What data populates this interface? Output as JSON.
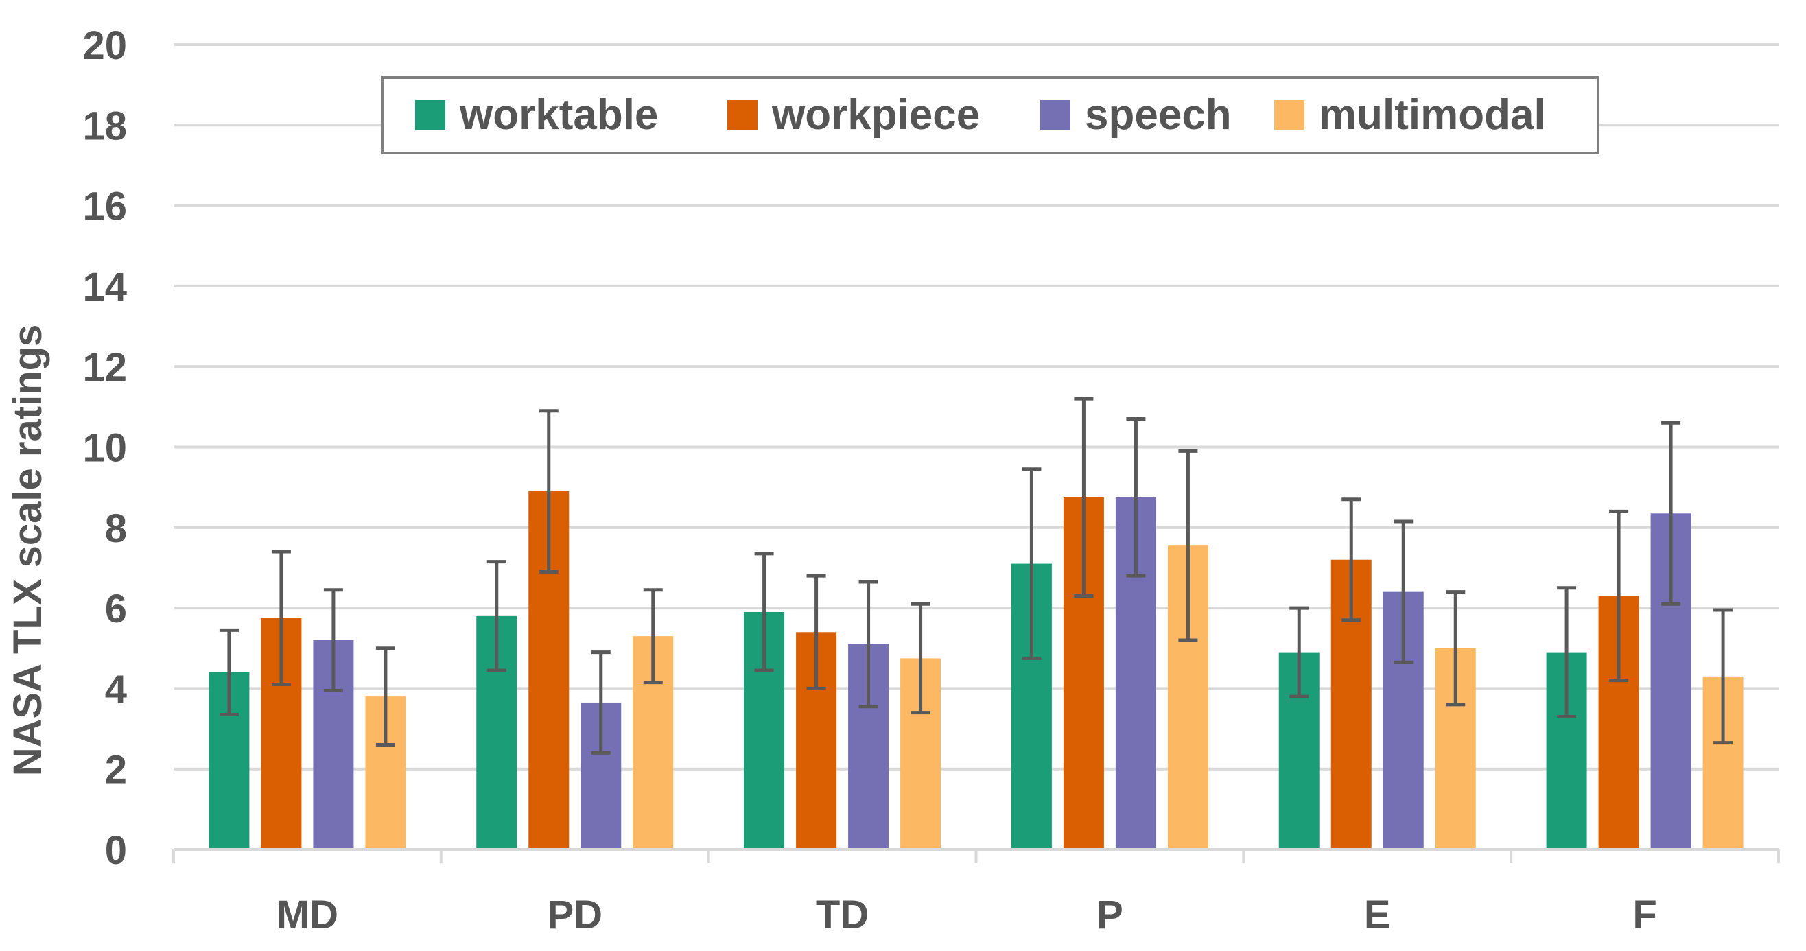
{
  "chart_data": {
    "type": "bar",
    "title": "",
    "xlabel": "",
    "ylabel": "NASA TLX scale ratings",
    "ylim": [
      0,
      20
    ],
    "yticks": [
      0,
      2,
      4,
      6,
      8,
      10,
      12,
      14,
      16,
      18,
      20
    ],
    "grid": true,
    "legend_position": "top-center",
    "categories": [
      "MD",
      "PD",
      "TD",
      "P",
      "E",
      "F"
    ],
    "series": [
      {
        "name": "worktable",
        "color": "#1b9e77",
        "values": [
          4.4,
          5.8,
          5.9,
          7.1,
          4.9,
          4.9
        ],
        "errors": [
          1.05,
          1.35,
          1.45,
          2.35,
          1.1,
          1.6
        ]
      },
      {
        "name": "workpiece",
        "color": "#d95f02",
        "values": [
          5.75,
          8.9,
          5.4,
          8.75,
          7.2,
          6.3
        ],
        "errors": [
          1.65,
          2.0,
          1.4,
          2.45,
          1.5,
          2.1
        ]
      },
      {
        "name": "speech",
        "color": "#7570b3",
        "values": [
          5.2,
          3.65,
          5.1,
          8.75,
          6.4,
          8.35
        ],
        "errors": [
          1.25,
          1.25,
          1.55,
          1.95,
          1.75,
          2.25
        ]
      },
      {
        "name": "multimodal",
        "color": "#fdb863",
        "values": [
          3.8,
          5.3,
          4.75,
          7.55,
          5.0,
          4.3
        ],
        "errors": [
          1.2,
          1.15,
          1.35,
          2.35,
          1.4,
          1.65
        ]
      }
    ]
  }
}
